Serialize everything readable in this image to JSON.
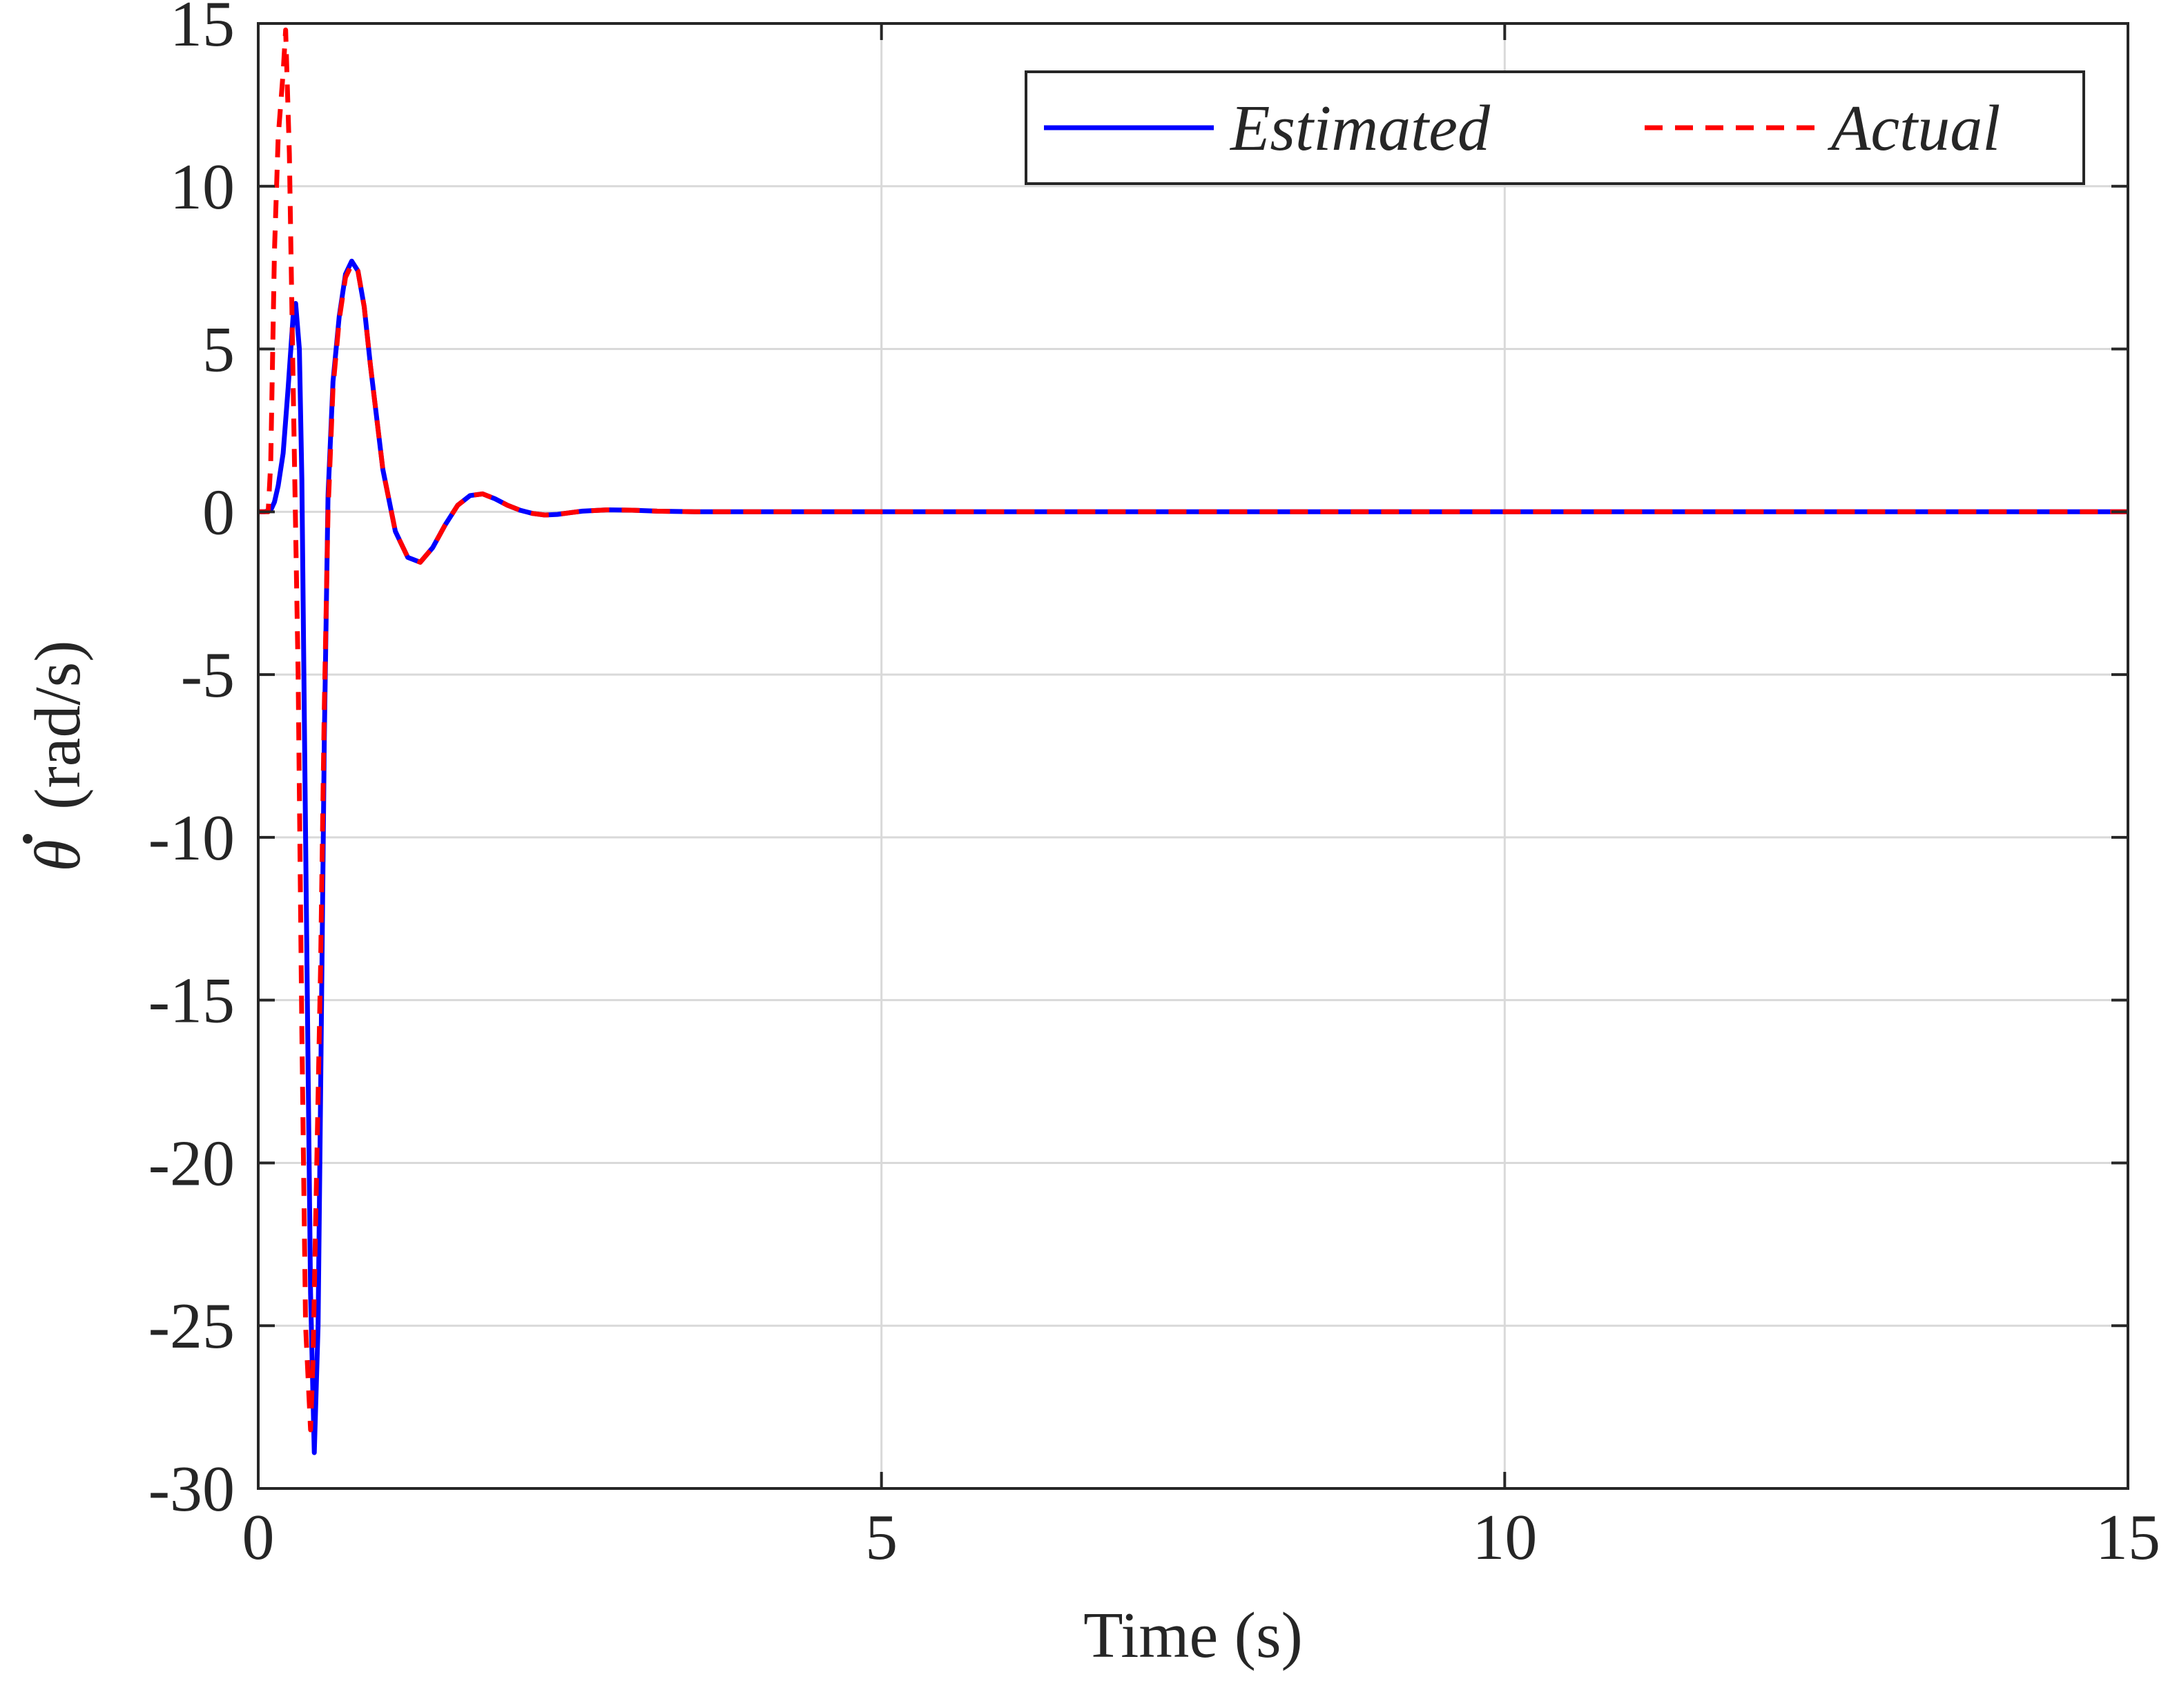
{
  "chart_data": {
    "type": "line",
    "xlabel": "Time (s)",
    "ylabel": "θ̇ (rad/s)",
    "ylabel_symbol": "θ",
    "ylabel_units": "(rad/s)",
    "xlim": [
      0,
      15
    ],
    "ylim": [
      -30,
      15
    ],
    "xticks": [
      0,
      5,
      10,
      15
    ],
    "xtick_labels": [
      "0",
      "5",
      "10",
      "15"
    ],
    "yticks": [
      -30,
      -25,
      -20,
      -15,
      -10,
      -5,
      0,
      5,
      10,
      15
    ],
    "ytick_labels": [
      "-30",
      "-25",
      "-20",
      "-15",
      "-10",
      "-5",
      "0",
      "5",
      "10",
      "15"
    ],
    "grid": true,
    "legend_position": "top-right",
    "series": [
      {
        "name": "Estimated",
        "color": "#0000ff",
        "style": "solid",
        "x": [
          0,
          0.05,
          0.1,
          0.13,
          0.16,
          0.2,
          0.24,
          0.28,
          0.3,
          0.33,
          0.35,
          0.38,
          0.42,
          0.45,
          0.48,
          0.5,
          0.53,
          0.56,
          0.6,
          0.65,
          0.7,
          0.75,
          0.8,
          0.85,
          0.9,
          1.0,
          1.1,
          1.2,
          1.3,
          1.4,
          1.5,
          1.6,
          1.7,
          1.8,
          1.9,
          2.0,
          2.1,
          2.2,
          2.3,
          2.4,
          2.5,
          2.6,
          2.8,
          3.0,
          3.2,
          3.5,
          4.0,
          5.0,
          7.5,
          10.0,
          12.5,
          15.0
        ],
        "y": [
          0,
          0,
          0.05,
          0.3,
          0.8,
          1.8,
          3.8,
          6.0,
          6.4,
          5.0,
          1.0,
          -10.0,
          -24.0,
          -28.9,
          -25.0,
          -18.0,
          -7.0,
          0.5,
          4.0,
          6.0,
          7.3,
          7.7,
          7.4,
          6.3,
          4.5,
          1.3,
          -0.6,
          -1.4,
          -1.55,
          -1.1,
          -0.4,
          0.2,
          0.5,
          0.55,
          0.4,
          0.2,
          0.05,
          -0.05,
          -0.1,
          -0.08,
          -0.03,
          0.02,
          0.06,
          0.05,
          0.02,
          0.0,
          0.0,
          0.0,
          0.0,
          0.0,
          0.0,
          0.0
        ]
      },
      {
        "name": "Actual",
        "color": "#ff0000",
        "style": "dashed",
        "x": [
          0,
          0.05,
          0.08,
          0.1,
          0.13,
          0.16,
          0.2,
          0.22,
          0.25,
          0.28,
          0.32,
          0.35,
          0.38,
          0.42,
          0.44,
          0.46,
          0.5,
          0.53,
          0.56,
          0.6,
          0.65,
          0.7,
          0.75,
          0.8,
          0.85,
          0.9,
          1.0,
          1.1,
          1.2,
          1.3,
          1.4,
          1.5,
          1.6,
          1.7,
          1.8,
          1.9,
          2.0,
          2.1,
          2.2,
          2.3,
          2.4,
          2.5,
          2.6,
          2.8,
          3.0,
          3.2,
          3.5,
          4.0,
          5.0,
          7.5,
          10.0,
          12.5,
          15.0
        ],
        "y": [
          0,
          0,
          0.0,
          1.5,
          8.0,
          11.5,
          13.5,
          14.8,
          11.0,
          4.0,
          -5.0,
          -16.0,
          -25.0,
          -28.2,
          -26.0,
          -22.0,
          -14.0,
          -6.0,
          0.0,
          3.8,
          5.9,
          7.2,
          7.6,
          7.4,
          6.3,
          4.5,
          1.3,
          -0.6,
          -1.4,
          -1.55,
          -1.1,
          -0.4,
          0.2,
          0.5,
          0.55,
          0.4,
          0.2,
          0.05,
          -0.05,
          -0.1,
          -0.08,
          -0.03,
          0.02,
          0.06,
          0.05,
          0.02,
          0.0,
          0.0,
          0.0,
          0.0,
          0.0,
          0.0,
          0.0
        ]
      }
    ]
  }
}
